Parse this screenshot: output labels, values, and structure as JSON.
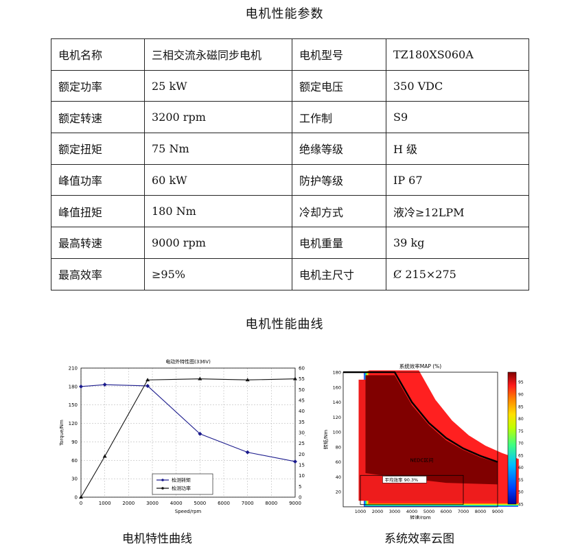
{
  "header": {
    "title": "电机性能参数"
  },
  "spec_table": [
    [
      "电机名称",
      "三相交流永磁同步电机",
      "电机型号",
      "TZ180XS060A"
    ],
    [
      "额定功率",
      "25 kW",
      "额定电压",
      "350 VDC"
    ],
    [
      "额定转速",
      "3200 rpm",
      "工作制",
      "S9"
    ],
    [
      "额定扭矩",
      "75 Nm",
      "绝缘等级",
      "H 级"
    ],
    [
      "峰值功率",
      "60 kW",
      "防护等级",
      "IP 67"
    ],
    [
      "峰值扭矩",
      "180 Nm",
      "冷却方式",
      "液冷≥12LPM"
    ],
    [
      "最高转速",
      "9000 rpm",
      "电机重量",
      "39 kg"
    ],
    [
      "最高效率",
      "≥95%",
      "电机主尺寸",
      "Ȼ 215×275"
    ]
  ],
  "section2": {
    "title": "电机性能曲线"
  },
  "captions": {
    "left": "电机特性曲线",
    "right": "系统效率云图"
  },
  "chart_data": [
    {
      "type": "line",
      "title": "电动外特性图(336V)",
      "xlabel": "Speed/rpm",
      "ylabel": "Torque/Nm",
      "y2label": "Power/kW",
      "xlim": [
        0,
        9000
      ],
      "ylim": [
        0,
        210
      ],
      "y2lim": [
        0,
        60
      ],
      "x_ticks": [
        0,
        1000,
        2000,
        3000,
        4000,
        5000,
        6000,
        7000,
        8000,
        9000
      ],
      "y_ticks": [
        0,
        30,
        60,
        90,
        120,
        150,
        180,
        210
      ],
      "y2_ticks": [
        0,
        5,
        10,
        15,
        20,
        25,
        30,
        35,
        40,
        45,
        50,
        55,
        60
      ],
      "grid": true,
      "legend_position": "bottom-left",
      "series": [
        {
          "name": "检测转矩",
          "axis": "left",
          "color": "#1a1a8c",
          "x": [
            0,
            1000,
            2800,
            5000,
            7000,
            9000
          ],
          "values": [
            180,
            183,
            181,
            103,
            73,
            58
          ]
        },
        {
          "name": "检测功率",
          "axis": "right",
          "color": "#111111",
          "x": [
            0,
            1000,
            2800,
            5000,
            7000,
            9000
          ],
          "values": [
            0,
            19,
            54.5,
            55,
            54.5,
            55
          ]
        }
      ]
    },
    {
      "type": "heatmap",
      "title": "系统效率MAP (%)",
      "xlabel": "转速/rpm",
      "ylabel": "转矩/Nm",
      "xlim": [
        0,
        9000
      ],
      "ylim": [
        0,
        180
      ],
      "x_ticks": [
        1000,
        2000,
        3000,
        4000,
        5000,
        6000,
        7000,
        8000,
        9000
      ],
      "y_ticks": [
        20,
        40,
        60,
        80,
        100,
        120,
        140,
        160,
        180
      ],
      "colorbar_ticks": [
        45,
        50,
        55,
        60,
        65,
        70,
        75,
        80,
        85,
        90,
        95
      ],
      "colorbar_range": [
        45,
        99
      ],
      "annotations": [
        "NEDC区间",
        "平均效率 90.3%"
      ]
    }
  ]
}
